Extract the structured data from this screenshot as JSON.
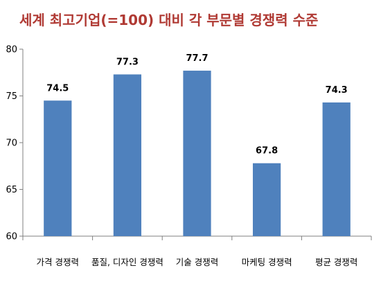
{
  "chart_data": {
    "type": "bar",
    "title": "세계 최고기업(=100) 대비 각 부문별 경쟁력 수준",
    "categories": [
      "가격 경쟁력",
      "품질, 디자인 경쟁력",
      "기술 경쟁력",
      "마케팅 경쟁력",
      "평균 경쟁력"
    ],
    "values": [
      74.5,
      77.3,
      77.7,
      67.8,
      74.3
    ],
    "value_labels": [
      "74.5",
      "77.3",
      "77.7",
      "67.8",
      "74.3"
    ],
    "ylim": [
      60,
      80
    ],
    "yticks": [
      "60",
      "65",
      "70",
      "75",
      "80"
    ],
    "grid": false,
    "legend": "none",
    "colors": {
      "bar": "#4f81bd",
      "title": "#b03a34",
      "axis": "#7f7f7f"
    }
  }
}
